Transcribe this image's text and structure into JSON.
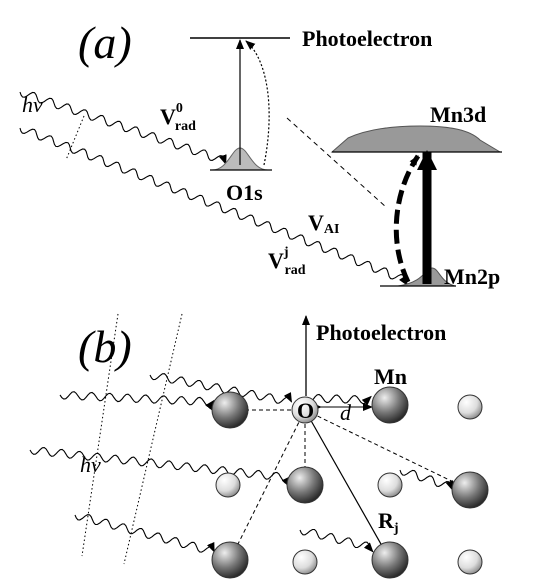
{
  "panel_a": {
    "label": "(a)",
    "photoelectron": "Photoelectron",
    "photon": "hν",
    "v_rad_0": {
      "main": "V",
      "sup": "0",
      "sub": "rad"
    },
    "mn3d": "Mn3d",
    "o1s": "O1s",
    "v_ai": {
      "main": "V",
      "sub": "AI"
    },
    "v_rad_j": {
      "main": "V",
      "sup": "j",
      "sub": "rad"
    },
    "mn2p": "Mn2p"
  },
  "panel_b": {
    "label": "(b)",
    "photoelectron": "Photoelectron",
    "mn": "Mn",
    "o": "O",
    "d": "d",
    "photon": "hν",
    "r_j": {
      "main": "R",
      "sub": "j"
    }
  }
}
